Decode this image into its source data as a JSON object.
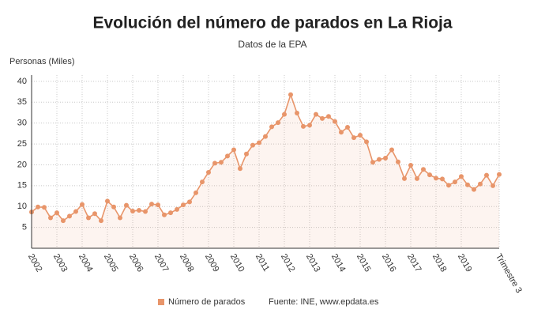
{
  "chart_data": {
    "type": "line",
    "title": "Evolución del número de parados en La Rioja",
    "subtitle": "Datos de la EPA",
    "y_label": "Personas (Miles)",
    "source": "Fuente: INE, www.epdata.es",
    "categories": [
      "2002",
      null,
      null,
      null,
      "2003",
      null,
      null,
      null,
      "2004",
      null,
      null,
      null,
      "2005",
      null,
      null,
      null,
      "2006",
      null,
      null,
      null,
      "2007",
      null,
      null,
      null,
      "2008",
      null,
      null,
      null,
      "2009",
      null,
      null,
      null,
      "2010",
      null,
      null,
      null,
      "2011",
      null,
      null,
      null,
      "2012",
      null,
      null,
      null,
      "2013",
      null,
      null,
      null,
      "2014",
      null,
      null,
      null,
      "2015",
      null,
      null,
      null,
      "2016",
      null,
      null,
      null,
      "2017",
      null,
      null,
      null,
      "2018",
      null,
      null,
      null,
      "2019",
      null,
      null,
      null,
      null,
      null,
      "Trimestre 3"
    ],
    "series": [
      {
        "name": "Número de parados",
        "color": "#e8956a",
        "values": [
          8.7,
          9.9,
          9.8,
          7.3,
          8.5,
          6.6,
          7.7,
          8.8,
          10.5,
          7.3,
          8.3,
          6.6,
          11.3,
          9.9,
          7.3,
          10.3,
          8.9,
          9.1,
          8.8,
          10.6,
          10.4,
          8.0,
          8.5,
          9.3,
          10.4,
          11.1,
          13.3,
          15.9,
          18.2,
          20.4,
          20.6,
          22.1,
          23.6,
          19.1,
          22.6,
          24.7,
          25.3,
          26.8,
          29.1,
          30.1,
          32.1,
          36.8,
          32.4,
          29.2,
          29.5,
          32.1,
          31.1,
          31.6,
          30.4,
          27.8,
          29.0,
          26.5,
          27.1,
          25.5,
          20.6,
          21.3,
          21.6,
          23.6,
          20.7,
          16.7,
          19.9,
          16.7,
          18.9,
          17.6,
          16.8,
          16.6,
          15.1,
          15.9,
          17.2,
          15.2,
          14.1,
          15.4,
          17.5,
          15.0,
          17.7
        ]
      }
    ],
    "ylim": [
      0,
      41.5
    ],
    "yticks": [
      5,
      10,
      15,
      20,
      25,
      30,
      35,
      40
    ],
    "grid": true,
    "legend": "bottom"
  }
}
